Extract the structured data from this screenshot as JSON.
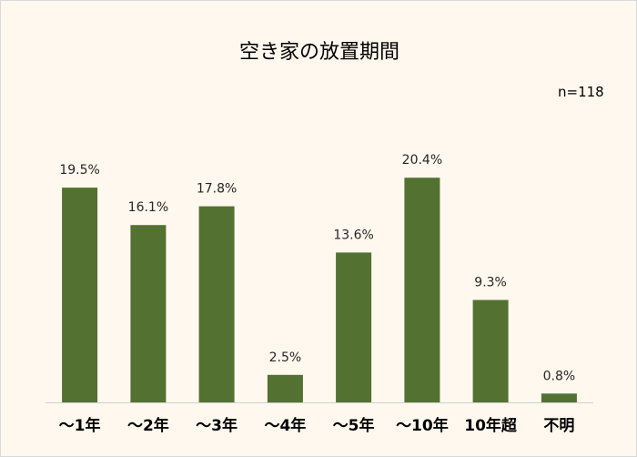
{
  "chart_data": {
    "type": "bar",
    "title": "空き家の放置期間",
    "note": "n=118",
    "categories": [
      "～1年",
      "～2年",
      "～3年",
      "～4年",
      "～5年",
      "～10年",
      "10年超",
      "不明"
    ],
    "values": [
      19.5,
      16.1,
      17.8,
      2.5,
      13.6,
      20.4,
      9.3,
      0.8
    ],
    "data_labels": [
      "19.5%",
      "16.1%",
      "17.8%",
      "2.5%",
      "13.6%",
      "20.4%",
      "9.3%",
      "0.8%"
    ],
    "unit": "%",
    "bar_color": "#537131",
    "background_color": "#fff8ee",
    "ylim": [
      0,
      22
    ],
    "grid": false,
    "legend": "none"
  }
}
